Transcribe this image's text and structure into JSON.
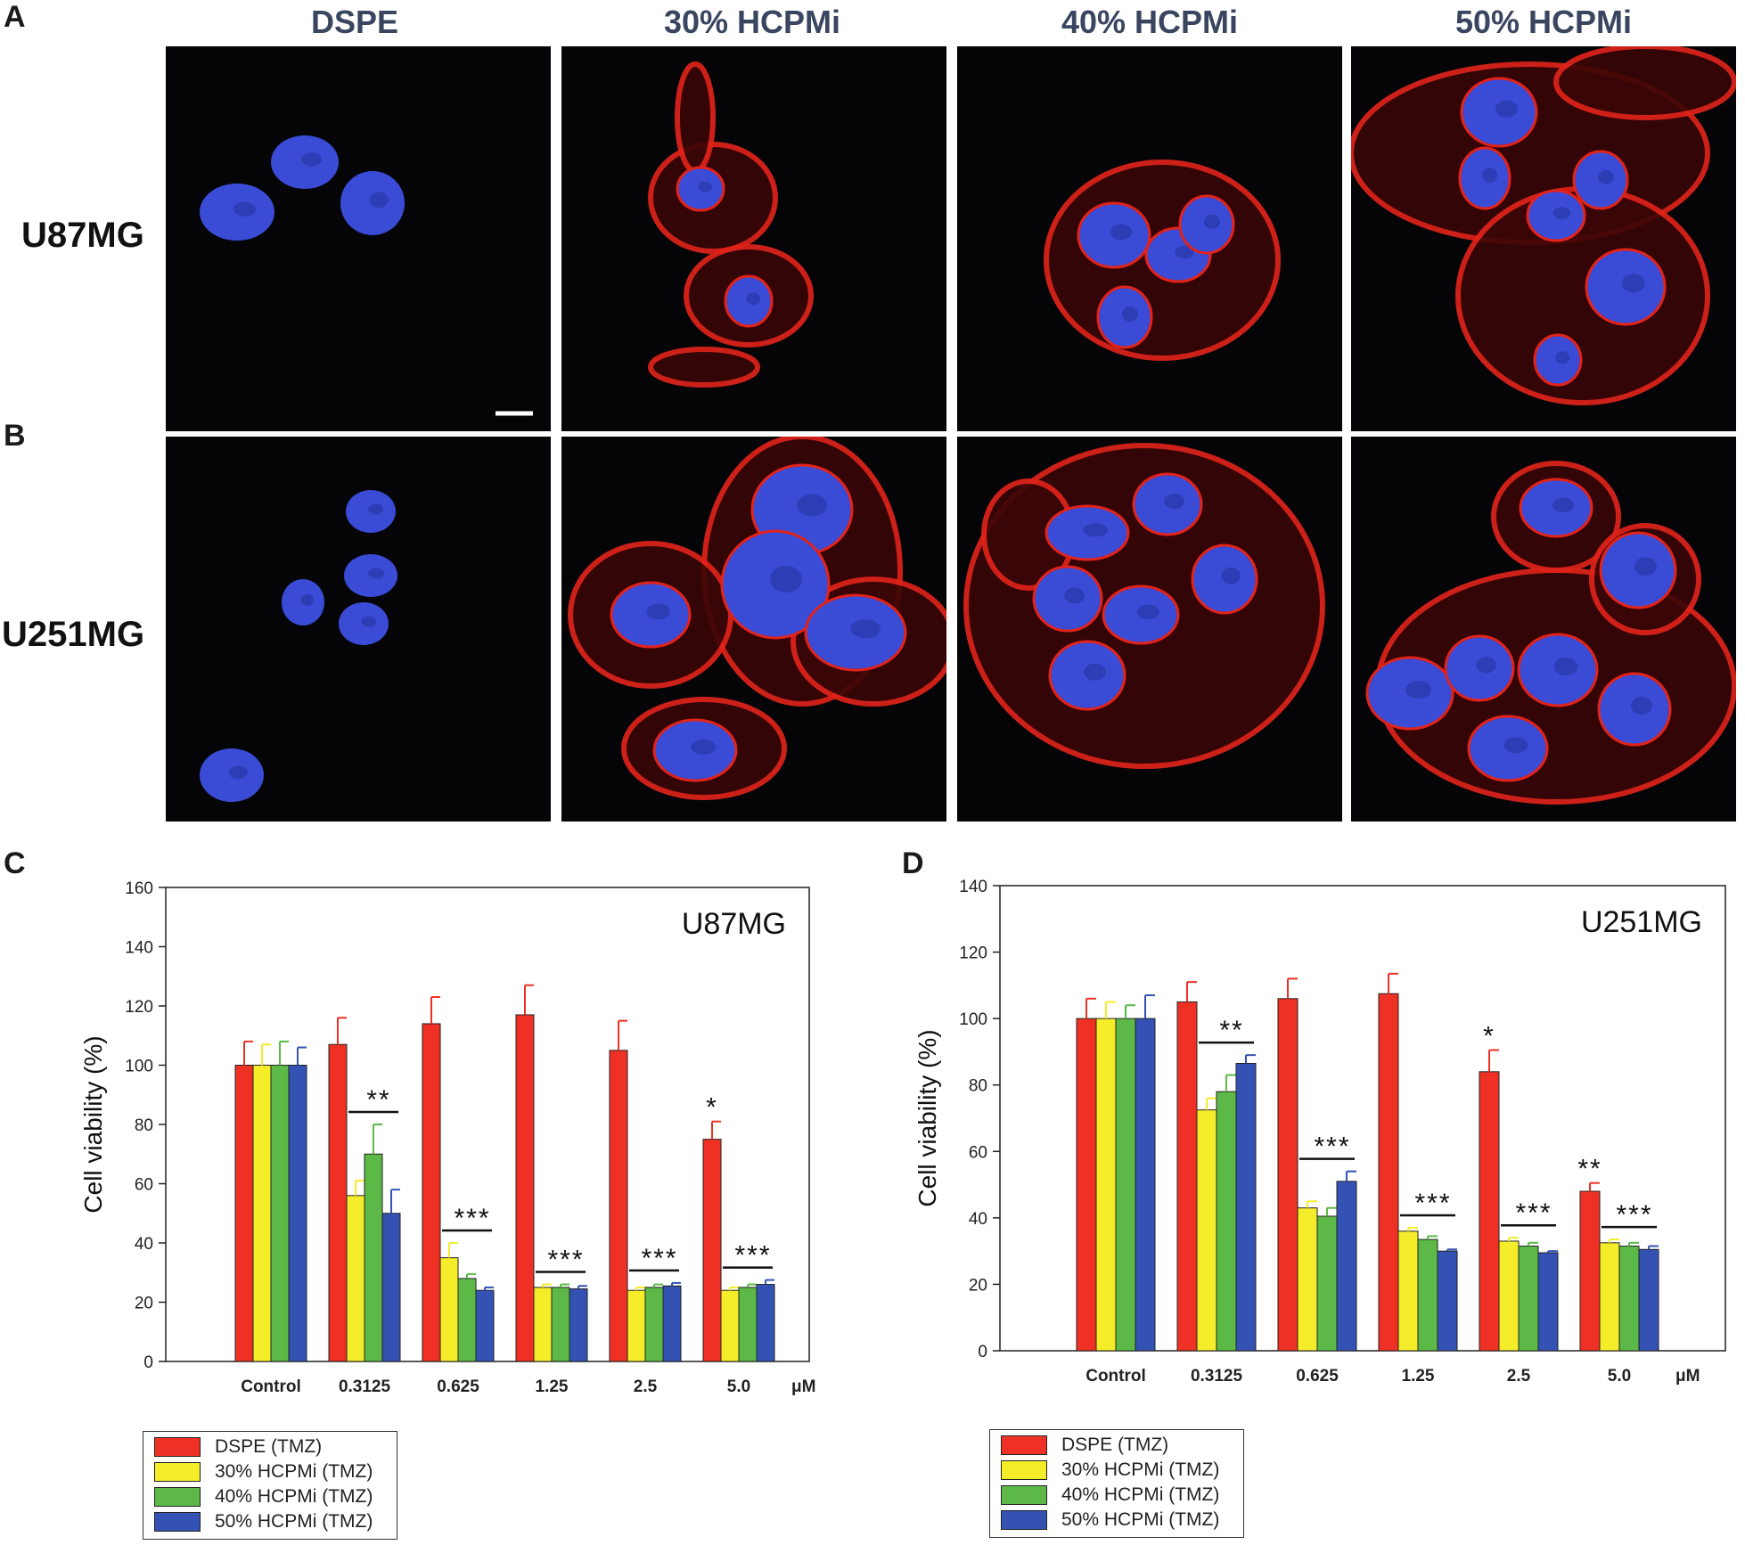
{
  "panels": {
    "a": "A",
    "b": "B",
    "c": "C",
    "d": "D"
  },
  "column_headers": [
    "DSPE",
    "30% HCPMi",
    "40% HCPMi",
    "50% HCPMi"
  ],
  "row_labels": [
    "U87MG",
    "U251MG"
  ],
  "micrograph_colors": {
    "nucleus": "#3a4bd6",
    "membrane": "#e2231a",
    "background": "#050508",
    "scale_bar": "#ffffff"
  },
  "legend": [
    {
      "label": "DSPE (TMZ)",
      "color": "#ee3124"
    },
    {
      "label": "30% HCPMi (TMZ)",
      "color": "#f5ec2a"
    },
    {
      "label": "40% HCPMi (TMZ)",
      "color": "#5cb947"
    },
    {
      "label": "50% HCPMi (TMZ)",
      "color": "#3452b4"
    }
  ],
  "chart_data": [
    {
      "type": "bar",
      "title": "U87MG",
      "ylabel": "Cell viability (%)",
      "unit_label": "μM",
      "categories": [
        "Control",
        "0.3125",
        "0.625",
        "1.25",
        "2.5",
        "5.0"
      ],
      "ylim": [
        0,
        160
      ],
      "yticks": [
        "0",
        "20",
        "40",
        "60",
        "80",
        "100",
        "120",
        "140",
        "160"
      ],
      "series": [
        {
          "name": "DSPE (TMZ)",
          "values": [
            100,
            107,
            114,
            117,
            105,
            75
          ],
          "errors": [
            8,
            9,
            9,
            10,
            10,
            6
          ]
        },
        {
          "name": "30% HCPMi (TMZ)",
          "values": [
            100,
            56,
            35,
            25,
            24,
            24
          ],
          "errors": [
            7,
            5,
            5,
            1,
            1,
            1
          ]
        },
        {
          "name": "40% HCPMi (TMZ)",
          "values": [
            100,
            70,
            28,
            25,
            25,
            25
          ],
          "errors": [
            8,
            10,
            1.5,
            1,
            1,
            1
          ]
        },
        {
          "name": "50% HCPMi (TMZ)",
          "values": [
            100,
            50,
            24,
            24.5,
            25.5,
            26
          ],
          "errors": [
            6,
            8,
            1,
            1,
            1,
            1.5
          ]
        }
      ],
      "annotations": [
        {
          "text": "**",
          "category": 1,
          "bracket": true
        },
        {
          "text": "***",
          "category": 2,
          "bracket": true
        },
        {
          "text": "***",
          "category": 3,
          "bracket": true
        },
        {
          "text": "***",
          "category": 4,
          "bracket": true
        },
        {
          "text": "***",
          "category": 5,
          "bracket": true
        },
        {
          "text": "*",
          "category": 5,
          "bracket": false
        }
      ]
    },
    {
      "type": "bar",
      "title": "U251MG",
      "ylabel": "Cell viability (%)",
      "unit_label": "μM",
      "categories": [
        "Control",
        "0.3125",
        "0.625",
        "1.25",
        "2.5",
        "5.0"
      ],
      "ylim": [
        0,
        140
      ],
      "yticks": [
        "0",
        "20",
        "40",
        "60",
        "80",
        "100",
        "120",
        "140"
      ],
      "series": [
        {
          "name": "DSPE (TMZ)",
          "values": [
            100,
            105,
            106,
            107.5,
            84,
            48
          ],
          "errors": [
            6,
            6,
            6,
            6,
            6.5,
            2.5
          ]
        },
        {
          "name": "30% HCPMi (TMZ)",
          "values": [
            100,
            72.5,
            43,
            36,
            33,
            32.5
          ],
          "errors": [
            5,
            3.5,
            2,
            1,
            1,
            1
          ]
        },
        {
          "name": "40% HCPMi (TMZ)",
          "values": [
            100,
            78,
            40.5,
            33.5,
            31.5,
            31.5
          ],
          "errors": [
            4,
            5,
            2.5,
            1,
            1,
            1
          ]
        },
        {
          "name": "50% HCPMi (TMZ)",
          "values": [
            100,
            86.5,
            51,
            30,
            29.5,
            30.5
          ],
          "errors": [
            7,
            2.5,
            3,
            0.5,
            0.5,
            1
          ]
        }
      ],
      "annotations": [
        {
          "text": "**",
          "category": 1,
          "bracket": true
        },
        {
          "text": "***",
          "category": 2,
          "bracket": true
        },
        {
          "text": "***",
          "category": 3,
          "bracket": true
        },
        {
          "text": "***",
          "category": 4,
          "bracket": true
        },
        {
          "text": "***",
          "category": 5,
          "bracket": true
        },
        {
          "text": "*",
          "category": 4,
          "bracket": false
        },
        {
          "text": "**",
          "category": 5,
          "bracket": false
        }
      ]
    }
  ]
}
